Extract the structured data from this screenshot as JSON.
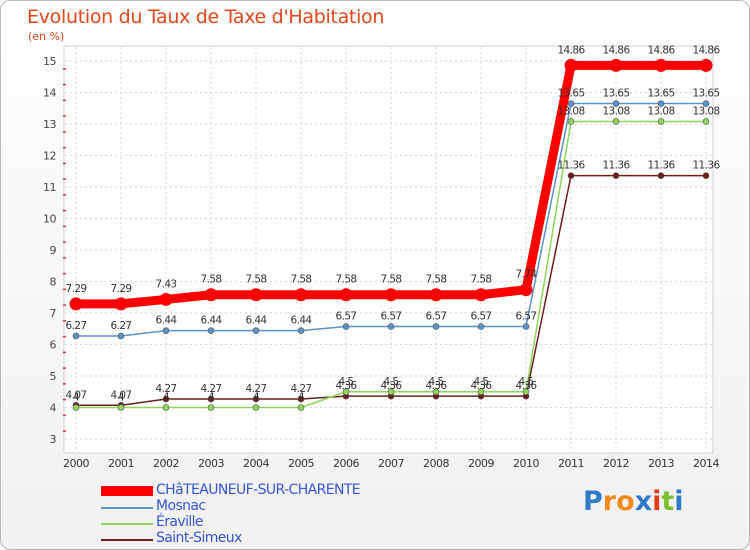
{
  "chart_data": {
    "type": "line",
    "title": "Evolution du Taux de Taxe d'Habitation",
    "ylabel": "(en %)",
    "xlabel": "",
    "x": [
      "2000",
      "2001",
      "2002",
      "2003",
      "2004",
      "2005",
      "2006",
      "2007",
      "2008",
      "2009",
      "2010",
      "2011",
      "2012",
      "2013",
      "2014"
    ],
    "ylim": [
      3,
      15
    ],
    "yticks": [
      "3",
      "4",
      "5",
      "6",
      "7",
      "8",
      "9",
      "10",
      "11",
      "12",
      "13",
      "14",
      "15"
    ],
    "series": [
      {
        "name": "CHâTEAUNEUF-SUR-CHARENTE",
        "color": "#ff0000",
        "values": [
          7.29,
          7.29,
          7.43,
          7.58,
          7.58,
          7.58,
          7.58,
          7.58,
          7.58,
          7.58,
          7.74,
          14.86,
          14.86,
          14.86,
          14.86
        ],
        "labels": [
          "7.29",
          "7.29",
          "7.43",
          "7.58",
          "7.58",
          "7.58",
          "7.58",
          "7.58",
          "7.58",
          "7.58",
          "7.74",
          "14.86",
          "14.86",
          "14.86",
          "14.86"
        ]
      },
      {
        "name": "Mosnac",
        "color": "#5b92c8",
        "values": [
          6.27,
          6.27,
          6.44,
          6.44,
          6.44,
          6.44,
          6.57,
          6.57,
          6.57,
          6.57,
          6.57,
          13.65,
          13.65,
          13.65,
          13.65
        ],
        "labels": [
          "6.27",
          "6.27",
          "6.44",
          "6.44",
          "6.44",
          "6.44",
          "6.57",
          "6.57",
          "6.57",
          "6.57",
          "6.57",
          "13.65",
          "13.65",
          "13.65",
          "13.65"
        ]
      },
      {
        "name": "Éraville",
        "color": "#8fd65a",
        "values": [
          4,
          4,
          4,
          4,
          4,
          4,
          4.5,
          4.5,
          4.5,
          4.5,
          4.5,
          13.08,
          13.08,
          13.08,
          13.08
        ],
        "labels": [
          "4",
          "4",
          "4",
          "4",
          "4",
          "4",
          "4.5",
          "4.5",
          "4.5",
          "4.5",
          "4.5",
          "13.08",
          "13.08",
          "13.08",
          "13.08"
        ]
      },
      {
        "name": "Saint-Simeux",
        "color": "#6b1e1e",
        "values": [
          4.07,
          4.07,
          4.27,
          4.27,
          4.27,
          4.27,
          4.36,
          4.36,
          4.36,
          4.36,
          4.36,
          11.36,
          11.36,
          11.36,
          11.36
        ],
        "labels": [
          "4.07",
          "4.07",
          "4.27",
          "4.27",
          "4.27",
          "4.27",
          "4.36",
          "4.36",
          "4.36",
          "4.36",
          "4.36",
          "11.36",
          "11.36",
          "11.36",
          "11.36"
        ]
      }
    ]
  },
  "legend": {
    "items": [
      "CHâTEAUNEUF-SUR-CHARENTE",
      "Mosnac",
      "Éraville",
      "Saint-Simeux"
    ]
  },
  "brand": {
    "letters": [
      "P",
      "r",
      "o",
      "x",
      "i",
      "t",
      "i"
    ],
    "colors": [
      "#2f7ac8",
      "#f08a1c",
      "#f08a1c",
      "#2f7ac8",
      "#e23d1f",
      "#7cbf33",
      "#2f7ac8"
    ]
  }
}
